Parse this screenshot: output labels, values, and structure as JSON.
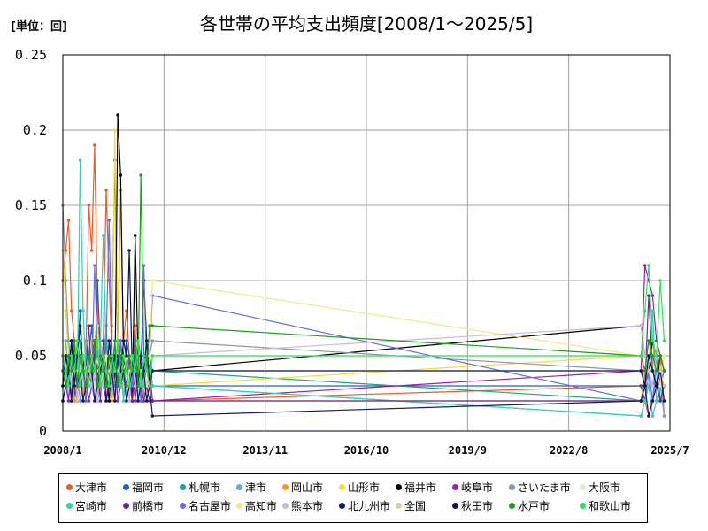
{
  "chart_data": {
    "type": "line",
    "title": "各世帯の平均支出頻度[2008/1～2025/5]",
    "unit_label": "[単位：回]",
    "ylim": [
      0,
      0.25
    ],
    "y_ticks": [
      "0",
      "0.05",
      "0.1",
      "0.15",
      "0.2",
      "0.25"
    ],
    "y_tick_values": [
      0,
      0.05,
      0.1,
      0.15,
      0.2,
      0.25
    ],
    "xlim": [
      "2008/1",
      "2025/7"
    ],
    "x_ticks": [
      "2008/1",
      "2010/12",
      "2013/11",
      "2016/10",
      "2019/9",
      "2022/8",
      "2025/7"
    ],
    "grid": true,
    "legend_position": "bottom",
    "series": [
      {
        "name": "大津市",
        "color": "#f05a28",
        "early": [
          0.1,
          0.12,
          0.14,
          0.08,
          0.06,
          0.04,
          0.02,
          0.03,
          0.05,
          0.15,
          0.12,
          0.19,
          0.08,
          0.04,
          0.06,
          0.16,
          0.1,
          0.05,
          0.02,
          0.04,
          0.03,
          0.06,
          0.08,
          0.05,
          0.04,
          0.07,
          0.03,
          0.05,
          0.02,
          0.05,
          0.04,
          0.02
        ],
        "late": [
          0.03,
          0.02,
          0.01,
          0.02,
          0.04,
          0.05,
          0.01
        ]
      },
      {
        "name": "福岡市",
        "color": "#1f5fbf",
        "early": [
          0.05,
          0.04,
          0.03,
          0.06,
          0.02,
          0.05,
          0.08,
          0.04,
          0.03,
          0.05,
          0.07,
          0.04,
          0.1,
          0.05,
          0.03,
          0.06,
          0.04,
          0.07,
          0.18,
          0.05,
          0.03,
          0.04,
          0.06,
          0.05,
          0.03,
          0.04,
          0.05,
          0.02,
          0.04,
          0.03,
          0.05,
          0.03
        ],
        "late": [
          0.03,
          0.02,
          0.04,
          0.03,
          0.05,
          0.02,
          0.03
        ]
      },
      {
        "name": "札幌市",
        "color": "#17a589",
        "early": [
          0.04,
          0.03,
          0.05,
          0.02,
          0.04,
          0.03,
          0.06,
          0.04,
          0.03,
          0.05,
          0.04,
          0.06,
          0.03,
          0.05,
          0.04,
          0.07,
          0.03,
          0.04,
          0.05,
          0.03,
          0.06,
          0.04,
          0.03,
          0.05,
          0.04,
          0.03,
          0.06,
          0.05,
          0.04,
          0.03,
          0.05,
          0.04
        ],
        "late": [
          0.02,
          0.03,
          0.04,
          0.02,
          0.03,
          0.02,
          0.03
        ]
      },
      {
        "name": "津市",
        "color": "#5dade2",
        "early": [
          0.03,
          0.04,
          0.02,
          0.05,
          0.03,
          0.04,
          0.02,
          0.03,
          0.05,
          0.04,
          0.03,
          0.02,
          0.04,
          0.05,
          0.03,
          0.04,
          0.02,
          0.03,
          0.04,
          0.03,
          0.05,
          0.02,
          0.04,
          0.03,
          0.02,
          0.04,
          0.03,
          0.05,
          0.02,
          0.03,
          0.04,
          0.03
        ],
        "late": [
          0.01,
          0.02,
          0.03,
          0.01,
          0.02,
          0.03,
          0.01
        ]
      },
      {
        "name": "岡山市",
        "color": "#f39c12",
        "early": [
          0.02,
          0.03,
          0.05,
          0.04,
          0.02,
          0.03,
          0.04,
          0.02,
          0.05,
          0.03,
          0.06,
          0.04,
          0.02,
          0.03,
          0.04,
          0.05,
          0.03,
          0.02,
          0.04,
          0.06,
          0.16,
          0.05,
          0.03,
          0.04,
          0.02,
          0.03,
          0.05,
          0.04,
          0.03,
          0.02,
          0.04,
          0.02
        ],
        "late": [
          0.02,
          0.04,
          0.05,
          0.06,
          0.03,
          0.05,
          0.02
        ]
      },
      {
        "name": "山形市",
        "color": "#f7dc2a",
        "early": [
          0.12,
          0.08,
          0.05,
          0.03,
          0.04,
          0.06,
          0.03,
          0.05,
          0.02,
          0.04,
          0.03,
          0.05,
          0.07,
          0.04,
          0.03,
          0.05,
          0.02,
          0.04,
          0.2,
          0.06,
          0.04,
          0.03,
          0.05,
          0.02,
          0.04,
          0.03,
          0.05,
          0.04,
          0.03,
          0.02,
          0.04,
          0.03
        ],
        "late": [
          0.05,
          0.04,
          0.06,
          0.05,
          0.03,
          0.04,
          0.05
        ]
      },
      {
        "name": "福井市",
        "color": "#000000",
        "early": [
          0.03,
          0.05,
          0.04,
          0.02,
          0.06,
          0.04,
          0.03,
          0.05,
          0.02,
          0.04,
          0.03,
          0.06,
          0.04,
          0.05,
          0.03,
          0.04,
          0.02,
          0.05,
          0.03,
          0.21,
          0.17,
          0.05,
          0.03,
          0.04,
          0.02,
          0.13,
          0.05,
          0.04,
          0.1,
          0.06,
          0.04,
          0.04
        ],
        "late": [
          0.07,
          0.05,
          0.04,
          0.06,
          0.05,
          0.03,
          0.04
        ]
      },
      {
        "name": "岐阜市",
        "color": "#9b1fa8",
        "early": [
          0.02,
          0.03,
          0.02,
          0.04,
          0.03,
          0.02,
          0.05,
          0.03,
          0.04,
          0.02,
          0.03,
          0.05,
          0.02,
          0.04,
          0.03,
          0.02,
          0.04,
          0.03,
          0.05,
          0.02,
          0.03,
          0.04,
          0.02,
          0.03,
          0.05,
          0.02,
          0.04,
          0.03,
          0.02,
          0.03,
          0.04,
          0.02
        ],
        "late": [
          0.04,
          0.11,
          0.1,
          0.09,
          0.06,
          0.05,
          0.04
        ]
      },
      {
        "name": "さいたま市",
        "color": "#8c96a3",
        "early": [
          0.15,
          0.1,
          0.06,
          0.04,
          0.03,
          0.05,
          0.04,
          0.03,
          0.06,
          0.04,
          0.05,
          0.03,
          0.04,
          0.06,
          0.03,
          0.05,
          0.04,
          0.03,
          0.05,
          0.04,
          0.03,
          0.06,
          0.04,
          0.05,
          0.03,
          0.04,
          0.05,
          0.03,
          0.04,
          0.06,
          0.05,
          0.06
        ],
        "late": [
          0.04,
          0.03,
          0.05,
          0.04,
          0.03,
          0.05,
          0.04
        ]
      },
      {
        "name": "大阪市",
        "color": "#d4f2c4",
        "early": [
          0.04,
          0.03,
          0.05,
          0.04,
          0.03,
          0.05,
          0.04,
          0.06,
          0.03,
          0.05,
          0.04,
          0.03,
          0.05,
          0.04,
          0.06,
          0.03,
          0.05,
          0.04,
          0.03,
          0.05,
          0.04,
          0.06,
          0.03,
          0.04,
          0.05,
          0.03,
          0.04,
          0.05,
          0.04,
          0.03,
          0.05,
          0.05
        ],
        "late": [
          0.05,
          0.04,
          0.03,
          0.05,
          0.04,
          0.03,
          0.05
        ]
      },
      {
        "name": "宮崎市",
        "color": "#2ed1b3",
        "early": [
          0.03,
          0.06,
          0.04,
          0.02,
          0.05,
          0.03,
          0.18,
          0.08,
          0.04,
          0.03,
          0.05,
          0.04,
          0.02,
          0.06,
          0.13,
          0.05,
          0.03,
          0.04,
          0.05,
          0.03,
          0.04,
          0.02,
          0.05,
          0.04,
          0.03,
          0.05,
          0.02,
          0.04,
          0.03,
          0.05,
          0.04,
          0.03
        ],
        "late": [
          0.01,
          0.02,
          0.03,
          0.08,
          0.02,
          0.03,
          0.02
        ]
      },
      {
        "name": "前橋市",
        "color": "#6c2a8c",
        "early": [
          0.05,
          0.04,
          0.03,
          0.06,
          0.04,
          0.02,
          0.05,
          0.03,
          0.04,
          0.07,
          0.03,
          0.05,
          0.04,
          0.02,
          0.06,
          0.04,
          0.03,
          0.05,
          0.04,
          0.03,
          0.06,
          0.04,
          0.03,
          0.05,
          0.02,
          0.04,
          0.03,
          0.05,
          0.04,
          0.03,
          0.02,
          0.02
        ],
        "late": [
          0.02,
          0.03,
          0.09,
          0.04,
          0.03,
          0.02,
          0.03
        ]
      },
      {
        "name": "名古屋市",
        "color": "#6a6ee0",
        "early": [
          0.04,
          0.05,
          0.03,
          0.04,
          0.06,
          0.03,
          0.05,
          0.04,
          0.02,
          0.05,
          0.03,
          0.11,
          0.05,
          0.04,
          0.03,
          0.06,
          0.14,
          0.05,
          0.03,
          0.04,
          0.06,
          0.03,
          0.05,
          0.04,
          0.03,
          0.05,
          0.04,
          0.02,
          0.11,
          0.04,
          0.05,
          0.09
        ],
        "late": [
          0.02,
          0.03,
          0.04,
          0.02,
          0.05,
          0.03,
          0.04
        ]
      },
      {
        "name": "高知市",
        "color": "#fbe38a",
        "early": [
          0.06,
          0.04,
          0.05,
          0.03,
          0.04,
          0.06,
          0.03,
          0.05,
          0.04,
          0.03,
          0.05,
          0.04,
          0.06,
          0.03,
          0.04,
          0.05,
          0.03,
          0.04,
          0.06,
          0.05,
          0.03,
          0.04,
          0.05,
          0.03,
          0.04,
          0.06,
          0.03,
          0.05,
          0.04,
          0.03,
          0.05,
          0.1
        ],
        "late": [
          0.05,
          0.04,
          0.06,
          0.05,
          0.04,
          0.03,
          0.05
        ]
      },
      {
        "name": "熊本市",
        "color": "#d2b4de",
        "early": [
          0.03,
          0.04,
          0.05,
          0.03,
          0.04,
          0.02,
          0.05,
          0.03,
          0.04,
          0.05,
          0.03,
          0.04,
          0.02,
          0.05,
          0.03,
          0.04,
          0.05,
          0.03,
          0.02,
          0.04,
          0.05,
          0.03,
          0.04,
          0.02,
          0.05,
          0.03,
          0.04,
          0.03,
          0.05,
          0.04,
          0.03,
          0.05
        ],
        "late": [
          0.07,
          0.05,
          0.04,
          0.03,
          0.05,
          0.04,
          0.03
        ]
      },
      {
        "name": "北九州市",
        "color": "#0d1b6e",
        "early": [
          0.02,
          0.03,
          0.04,
          0.02,
          0.05,
          0.03,
          0.04,
          0.02,
          0.03,
          0.05,
          0.04,
          0.02,
          0.03,
          0.04,
          0.05,
          0.02,
          0.03,
          0.04,
          0.02,
          0.05,
          0.03,
          0.04,
          0.02,
          0.03,
          0.04,
          0.05,
          0.02,
          0.03,
          0.04,
          0.02,
          0.03,
          0.01
        ],
        "late": [
          0.02,
          0.03,
          0.01,
          0.02,
          0.03,
          0.04,
          0.02
        ]
      },
      {
        "name": "全国",
        "color": "#d8cfa0",
        "early": [
          0.04,
          0.04,
          0.04,
          0.04,
          0.04,
          0.04,
          0.04,
          0.04,
          0.04,
          0.04,
          0.04,
          0.04,
          0.04,
          0.04,
          0.04,
          0.04,
          0.04,
          0.04,
          0.04,
          0.04,
          0.04,
          0.04,
          0.04,
          0.04,
          0.04,
          0.04,
          0.04,
          0.04,
          0.04,
          0.04,
          0.04,
          0.04
        ],
        "late": [
          0.04,
          0.04,
          0.04,
          0.04,
          0.04,
          0.04,
          0.04
        ]
      },
      {
        "name": "秋田市",
        "color": "#0b1450",
        "early": [
          0.03,
          0.05,
          0.04,
          0.06,
          0.03,
          0.05,
          0.07,
          0.04,
          0.03,
          0.05,
          0.04,
          0.06,
          0.03,
          0.04,
          0.05,
          0.03,
          0.06,
          0.04,
          0.05,
          0.03,
          0.04,
          0.06,
          0.05,
          0.12,
          0.04,
          0.06,
          0.03,
          0.05,
          0.04,
          0.06,
          0.03,
          0.04
        ],
        "late": [
          0.04,
          0.03,
          0.05,
          0.04,
          0.03,
          0.05,
          0.04
        ]
      },
      {
        "name": "水戸市",
        "color": "#1e9c1e",
        "early": [
          0.04,
          0.03,
          0.05,
          0.04,
          0.06,
          0.03,
          0.05,
          0.04,
          0.03,
          0.05,
          0.04,
          0.06,
          0.03,
          0.05,
          0.04,
          0.03,
          0.05,
          0.04,
          0.06,
          0.03,
          0.05,
          0.04,
          0.03,
          0.05,
          0.04,
          0.06,
          0.03,
          0.17,
          0.05,
          0.04,
          0.07,
          0.07
        ],
        "late": [
          0.05,
          0.04,
          0.06,
          0.05,
          0.04,
          0.05,
          0.04
        ]
      },
      {
        "name": "和歌山市",
        "color": "#2ee35c",
        "early": [
          0.05,
          0.04,
          0.03,
          0.05,
          0.04,
          0.06,
          0.03,
          0.05,
          0.04,
          0.03,
          0.05,
          0.04,
          0.06,
          0.03,
          0.05,
          0.04,
          0.03,
          0.05,
          0.04,
          0.06,
          0.03,
          0.05,
          0.04,
          0.03,
          0.05,
          0.04,
          0.06,
          0.03,
          0.05,
          0.04,
          0.03,
          0.05
        ],
        "late": [
          0.05,
          0.08,
          0.11,
          0.06,
          0.05,
          0.1,
          0.06
        ]
      }
    ]
  }
}
